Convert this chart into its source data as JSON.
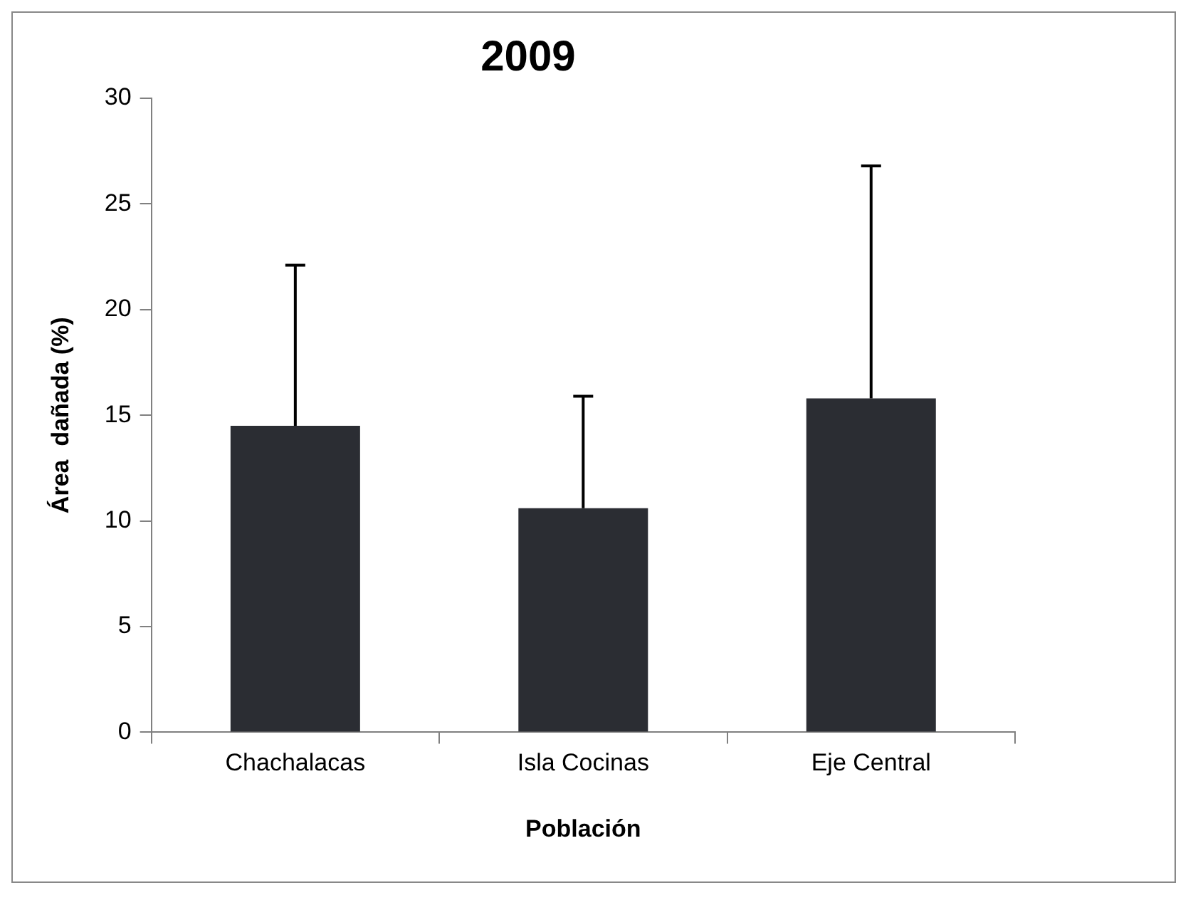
{
  "chart_data": {
    "type": "bar",
    "title": "2009",
    "xlabel": "Población",
    "ylabel": "Área  dañada (%)",
    "categories": [
      "Chachalacas",
      "Isla Cocinas",
      "Eje Central"
    ],
    "values": [
      14.5,
      10.6,
      15.8
    ],
    "errors": [
      [
        14.5,
        22.1
      ],
      [
        10.6,
        15.9
      ],
      [
        15.8,
        26.8
      ]
    ],
    "color": "#2b2d33",
    "ylim": [
      0,
      30
    ],
    "yticks": [
      0,
      5,
      10,
      15,
      20,
      25,
      30
    ],
    "grid": false,
    "legend": false
  }
}
